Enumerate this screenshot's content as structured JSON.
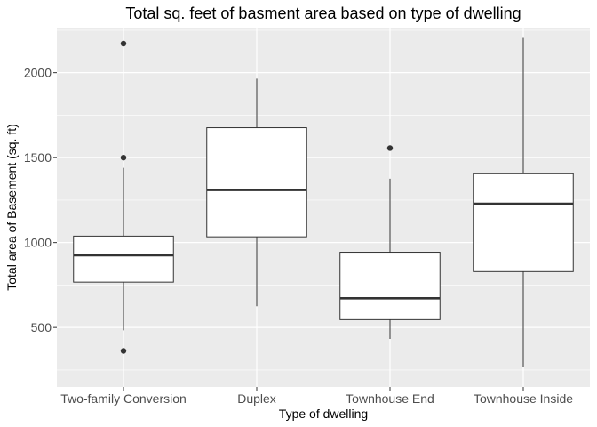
{
  "chart_data": {
    "type": "boxplot",
    "title": "Total sq. feet of basment area based on type of dwelling",
    "xlabel": "Type of dwelling",
    "ylabel": "Total area of Basement (sq. ft)",
    "categories": [
      "Two-family Conversion",
      "Duplex",
      "Townhouse End",
      "Townhouse Inside"
    ],
    "yticks": [
      500,
      1000,
      1500,
      2000
    ],
    "ylim": [
      150,
      2260
    ],
    "grid": true,
    "colors": {
      "panel": "#ebebeb",
      "grid": "#ffffff",
      "box_fill": "#ffffff",
      "box_stroke": "#333333",
      "outlier": "#333333"
    },
    "boxes": [
      {
        "category": "Two-family Conversion",
        "lower_whisker": 483,
        "q1": 767,
        "median": 925,
        "q3": 1038,
        "upper_whisker": 1440,
        "outliers": [
          2171,
          1500,
          362
        ]
      },
      {
        "category": "Duplex",
        "lower_whisker": 625,
        "q1": 1034,
        "median": 1309,
        "q3": 1676,
        "upper_whisker": 1965,
        "outliers": []
      },
      {
        "category": "Townhouse End",
        "lower_whisker": 433,
        "q1": 546,
        "median": 672,
        "q3": 943,
        "upper_whisker": 1376,
        "outliers": [
          1556
        ]
      },
      {
        "category": "Townhouse Inside",
        "lower_whisker": 266,
        "q1": 829,
        "median": 1228,
        "q3": 1405,
        "upper_whisker": 2205,
        "outliers": []
      }
    ]
  }
}
